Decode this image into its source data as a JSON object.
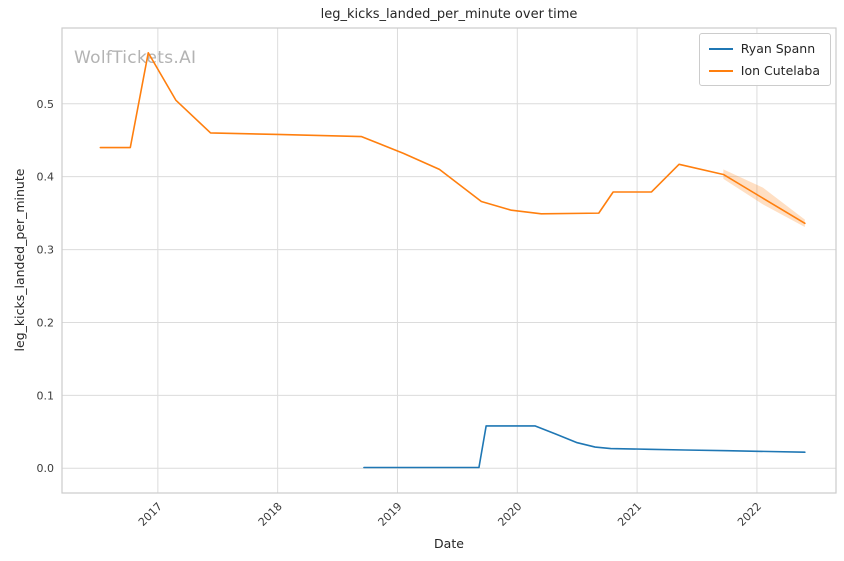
{
  "chart_data": {
    "type": "line",
    "title": "leg_kicks_landed_per_minute over time",
    "xlabel": "Date",
    "ylabel": "leg_kicks_landed_per_minute",
    "watermark": "WolfTickets.AI",
    "grid": true,
    "legend_position": "upper right",
    "xlim": [
      2016.2,
      2022.66
    ],
    "ylim": [
      -0.034,
      0.604
    ],
    "x_ticks": [
      {
        "v": 2017,
        "label": "2017"
      },
      {
        "v": 2018,
        "label": "2018"
      },
      {
        "v": 2019,
        "label": "2019"
      },
      {
        "v": 2020,
        "label": "2020"
      },
      {
        "v": 2021,
        "label": "2021"
      },
      {
        "v": 2022,
        "label": "2022"
      }
    ],
    "y_ticks": [
      {
        "v": 0.0,
        "label": "0.0"
      },
      {
        "v": 0.1,
        "label": "0.1"
      },
      {
        "v": 0.2,
        "label": "0.2"
      },
      {
        "v": 0.3,
        "label": "0.3"
      },
      {
        "v": 0.4,
        "label": "0.4"
      },
      {
        "v": 0.5,
        "label": "0.5"
      }
    ],
    "colors": {
      "grid": "#dcdcdc",
      "frame": "#cccccc",
      "text": "#262626",
      "watermark": "#b3b3b3"
    },
    "series": [
      {
        "name": "Ryan Spann",
        "color": "#1f77b4",
        "x": [
          2018.72,
          2019.1,
          2019.68,
          2019.74,
          2020.15,
          2020.32,
          2020.5,
          2020.65,
          2020.78,
          2021.1,
          2021.4,
          2021.75,
          2022.4
        ],
        "y": [
          0.001,
          0.001,
          0.001,
          0.058,
          0.058,
          0.047,
          0.035,
          0.029,
          0.027,
          0.026,
          0.025,
          0.024,
          0.022
        ]
      },
      {
        "name": "Ion Cutelaba",
        "color": "#ff7f0e",
        "x": [
          2016.52,
          2016.77,
          2016.92,
          2017.15,
          2017.44,
          2018.0,
          2018.7,
          2019.05,
          2019.35,
          2019.7,
          2019.95,
          2020.2,
          2020.68,
          2020.8,
          2021.12,
          2021.35,
          2021.72,
          2022.4
        ],
        "y": [
          0.44,
          0.44,
          0.57,
          0.505,
          0.46,
          0.458,
          0.455,
          0.432,
          0.41,
          0.366,
          0.354,
          0.349,
          0.35,
          0.379,
          0.379,
          0.417,
          0.403,
          0.336
        ]
      }
    ],
    "band": {
      "series": "Ion Cutelaba",
      "x": [
        2021.72,
        2022.05,
        2022.4
      ],
      "upper": [
        0.41,
        0.385,
        0.341
      ],
      "lower": [
        0.397,
        0.362,
        0.331
      ],
      "opacity": 0.25
    }
  }
}
